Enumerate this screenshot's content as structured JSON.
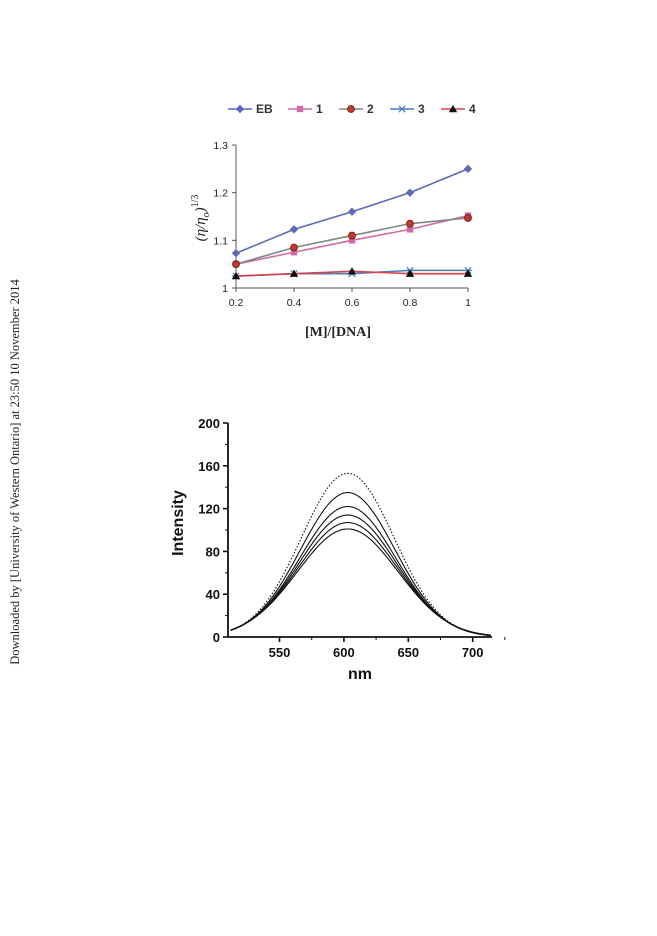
{
  "side_note": "Downloaded by [University of Western Ontario] at 23:50 10 November 2014",
  "chart_data": [
    {
      "type": "line",
      "x": [
        0.2,
        0.4,
        0.6,
        0.8,
        1
      ],
      "x_tick_labels": [
        "0.2",
        "0.4",
        "0.6",
        "0.8",
        "1"
      ],
      "y_tick_labels": [
        "1",
        "1.1",
        "1.2",
        "1.3"
      ],
      "xlim": [
        0.2,
        1
      ],
      "ylim": [
        1,
        1.3
      ],
      "xlabel": "[M]/[DNA]",
      "ylabel": "(η/η₀)^1/3",
      "ylabel_main": "(η/η",
      "ylabel_sub": "o",
      "ylabel_close": ")",
      "ylabel_sup": "1/3",
      "legend_position": "top",
      "series": [
        {
          "name": "EB",
          "values": [
            1.073,
            1.123,
            1.16,
            1.2,
            1.25
          ],
          "color": "#5b6bb5",
          "marker": "diamond"
        },
        {
          "name": "1",
          "values": [
            1.05,
            1.075,
            1.1,
            1.123,
            1.152
          ],
          "color": "#d16aa8",
          "marker": "square"
        },
        {
          "name": "2",
          "values": [
            1.05,
            1.085,
            1.11,
            1.135,
            1.147
          ],
          "color": "#7a8a80",
          "marker": "circle"
        },
        {
          "name": "3",
          "values": [
            1.025,
            1.03,
            1.03,
            1.037,
            1.037
          ],
          "color": "#4b7fb5",
          "marker": "asterisk"
        },
        {
          "name": "4",
          "values": [
            1.025,
            1.03,
            1.035,
            1.03,
            1.03
          ],
          "color": "#d6414c",
          "marker": "triangle"
        }
      ]
    },
    {
      "type": "line",
      "xlabel": "nm",
      "ylabel": "Intensity",
      "xlim": [
        510,
        715
      ],
      "ylim": [
        0,
        200
      ],
      "x_ticks": [
        550,
        600,
        650,
        700
      ],
      "y_ticks": [
        0,
        40,
        80,
        120,
        160,
        200
      ],
      "grid": false,
      "peak_x": 603,
      "series": [
        {
          "values_peak": 153,
          "style": "dotted"
        },
        {
          "values_peak": 135,
          "style": "solid"
        },
        {
          "values_peak": 122,
          "style": "solid"
        },
        {
          "values_peak": 114,
          "style": "solid"
        },
        {
          "values_peak": 107,
          "style": "solid"
        },
        {
          "values_peak": 101,
          "style": "solid"
        }
      ]
    }
  ]
}
